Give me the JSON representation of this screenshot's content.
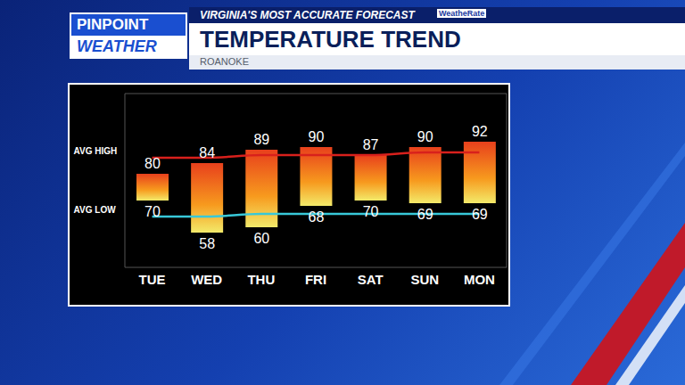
{
  "header": {
    "logo_top": "PINPOINT",
    "logo_bottom": "WEATHER",
    "tagline": "VIRGINIA'S MOST ACCURATE FORECAST",
    "badge": "WeatheRate"
  },
  "chart_data": {
    "type": "bar",
    "title": "TEMPERATURE TREND",
    "subtitle": "ROANOKE",
    "categories": [
      "TUE",
      "WED",
      "THU",
      "FRI",
      "SAT",
      "SUN",
      "MON"
    ],
    "highs": [
      80,
      84,
      89,
      90,
      87,
      90,
      92
    ],
    "lows": [
      70,
      58,
      60,
      68,
      70,
      69,
      69
    ],
    "color": "#e8401c",
    "data_labels": true,
    "ylim": [
      45,
      110
    ],
    "tick_labels": "x",
    "series": [
      {
        "name": "AVG HIGH",
        "type": "line",
        "color": "#d8201c",
        "values": [
          86,
          86,
          87,
          87,
          87,
          88,
          88
        ]
      },
      {
        "name": "AVG LOW",
        "type": "line",
        "color": "#38c8d8",
        "values": [
          64,
          64,
          65,
          65,
          65,
          65,
          65
        ]
      }
    ]
  }
}
